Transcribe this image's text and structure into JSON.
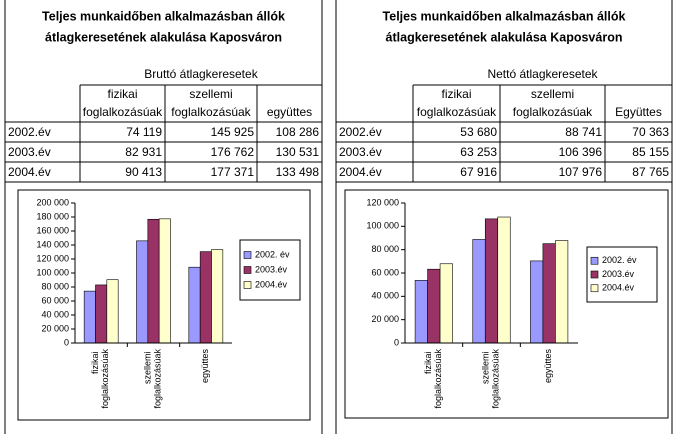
{
  "panels": [
    {
      "title": [
        "Teljes munkaidőben alkalmazásban állók",
        "átlagkeresetének alakulása Kaposváron"
      ],
      "table": {
        "caption": "Bruttó átlagkeresetek",
        "header": [
          [
            "fizikai",
            "foglalkozásúak"
          ],
          [
            "szellemi",
            "foglalkozásúak"
          ],
          [
            "együttes"
          ]
        ],
        "rows": [
          [
            "2002.év",
            "74 119",
            "145 925",
            "108 286"
          ],
          [
            "2003.év",
            "82 931",
            "176 762",
            "130 531"
          ],
          [
            "2004.év",
            "90 413",
            "177 371",
            "133 498"
          ]
        ]
      }
    },
    {
      "title": [
        "Teljes munkaidőben alkalmazásban állók",
        "átlagkeresetének alakulása Kaposváron"
      ],
      "table": {
        "caption": "Nettó átlagkeresetek",
        "header": [
          [
            "fizikai",
            "foglalkozásúak"
          ],
          [
            "szellemi",
            "foglalkozásúak"
          ],
          [
            "Együttes"
          ]
        ],
        "rows": [
          [
            "2002.év",
            "53 680",
            "88 741",
            "70 363"
          ],
          [
            "2003.év",
            "63 253",
            "106 396",
            "85 155"
          ],
          [
            "2004.év",
            "67 916",
            "107 976",
            "87 765"
          ]
        ]
      }
    }
  ],
  "chart_data": [
    {
      "type": "bar",
      "categories": [
        "fizikai foglalkozásúak",
        "szellemi foglalkozásúak",
        "együttes"
      ],
      "series": [
        {
          "name": "2002. év",
          "color": "#9999ff",
          "values": [
            74119,
            145925,
            108286
          ]
        },
        {
          "name": "2003.év",
          "color": "#993366",
          "values": [
            82931,
            176762,
            130531
          ]
        },
        {
          "name": "2004.év",
          "color": "#ffffcc",
          "values": [
            90413,
            177371,
            133498
          ]
        }
      ],
      "ylim": [
        0,
        200000
      ],
      "yticks": [
        0,
        {
          "value": 20000,
          "label": "20 000"
        },
        {
          "value": 40000,
          "label": "40 000"
        },
        {
          "value": 60000,
          "label": "60 000"
        },
        {
          "value": 80000,
          "label": "80 000"
        },
        {
          "value": 100000,
          "label": "100 000"
        },
        {
          "value": 120000,
          "label": "120 000"
        },
        {
          "value": 140000,
          "label": "140 000"
        },
        {
          "value": 160000,
          "label": "160 000"
        },
        {
          "value": 180000,
          "label": "180 000"
        },
        {
          "value": 200000,
          "label": "200 000"
        }
      ],
      "legend": "right"
    },
    {
      "type": "bar",
      "categories": [
        "fizikai foglalkozásúak",
        "szellemi foglalkozásúak",
        "együttes"
      ],
      "series": [
        {
          "name": "2002. év",
          "color": "#9999ff",
          "values": [
            53680,
            88741,
            70363
          ]
        },
        {
          "name": "2003.év",
          "color": "#993366",
          "values": [
            63253,
            106396,
            85155
          ]
        },
        {
          "name": "2004.év",
          "color": "#ffffcc",
          "values": [
            67916,
            107976,
            87765
          ]
        }
      ],
      "ylim": [
        0,
        120000
      ],
      "yticks": [
        0,
        {
          "value": 20000,
          "label": "20 000"
        },
        {
          "value": 40000,
          "label": "40 000"
        },
        {
          "value": 60000,
          "label": "60 000"
        },
        {
          "value": 80000,
          "label": "80 000"
        },
        {
          "value": 100000,
          "label": "100 000"
        },
        {
          "value": 120000,
          "label": "120 000"
        }
      ],
      "legend": "right"
    }
  ]
}
